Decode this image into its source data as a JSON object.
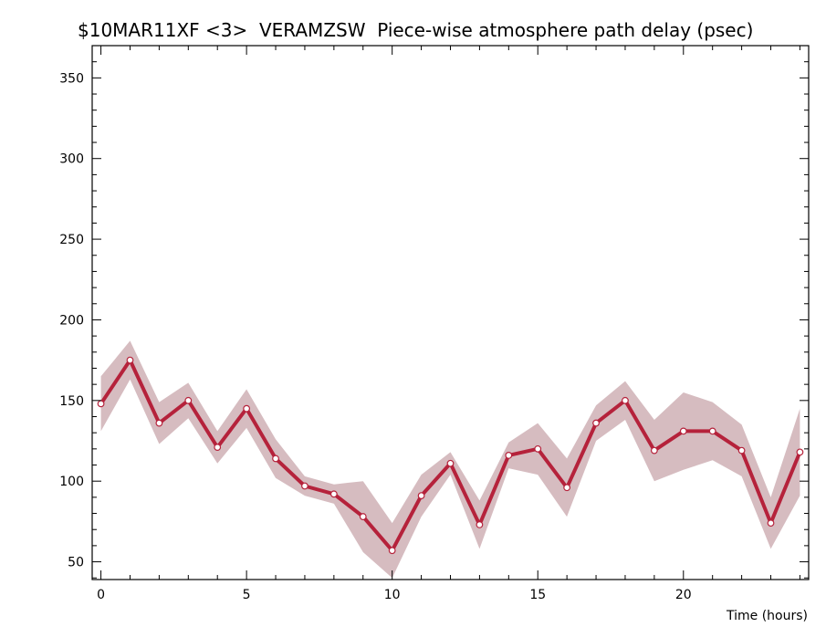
{
  "chart_data": {
    "type": "line",
    "title": "$10MAR11XF <3>  VERAMZSW  Piece-wise atmosphere path delay (psec)",
    "xlabel": "Time (hours)",
    "ylabel": "",
    "xlim": [
      -0.3,
      24.3
    ],
    "ylim": [
      39,
      370
    ],
    "x_ticks": [
      0,
      5,
      10,
      15,
      20
    ],
    "y_ticks": [
      50,
      100,
      150,
      200,
      250,
      300,
      350
    ],
    "x_minor_step": 1,
    "y_minor_step": 10,
    "grid": false,
    "series": [
      {
        "x": [
          0,
          1,
          2,
          3,
          4,
          5,
          6,
          7,
          8,
          9,
          10,
          11,
          12,
          13,
          14,
          15,
          16,
          17,
          18,
          19,
          20,
          21,
          22,
          23,
          24
        ],
        "values": [
          148,
          175,
          136,
          150,
          121,
          145,
          114,
          97,
          92,
          78,
          57,
          91,
          111,
          73,
          116,
          120,
          96,
          136,
          150,
          119,
          131,
          131,
          119,
          74,
          118
        ],
        "upper": [
          165,
          187,
          149,
          161,
          131,
          157,
          126,
          103,
          98,
          100,
          74,
          104,
          118,
          88,
          124,
          136,
          114,
          147,
          162,
          138,
          155,
          149,
          135,
          90,
          145
        ],
        "lower": [
          131,
          163,
          123,
          139,
          111,
          133,
          102,
          91,
          86,
          56,
          40,
          78,
          104,
          58,
          108,
          104,
          78,
          125,
          138,
          100,
          107,
          113,
          103,
          58,
          91
        ]
      }
    ],
    "colors": {
      "line": "#b5223b",
      "band": "#d6bcc0",
      "marker_fill": "#ffffff"
    }
  }
}
